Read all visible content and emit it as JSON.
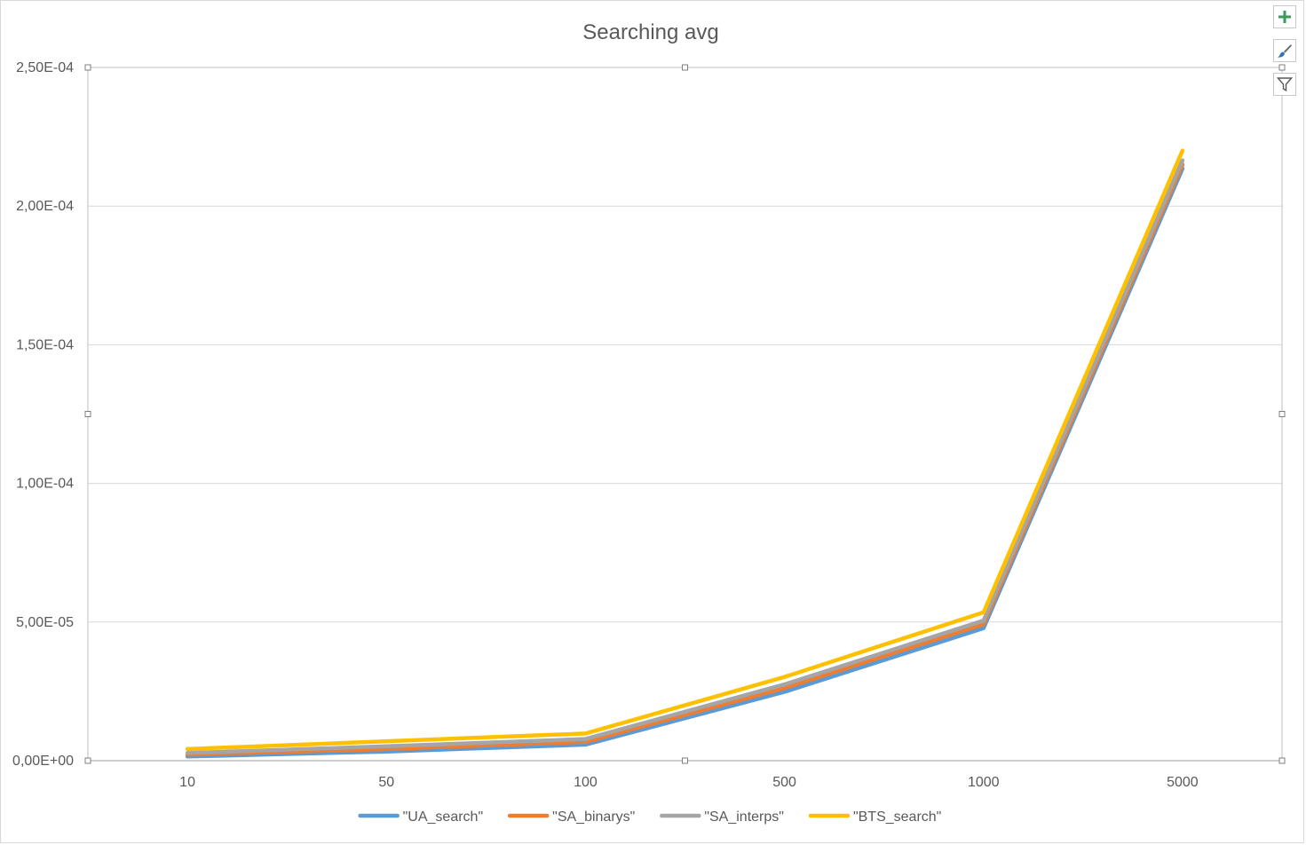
{
  "chart_data": {
    "type": "line",
    "title": "Searching avg",
    "xlabel": "",
    "ylabel": "",
    "categories": [
      "10",
      "50",
      "100",
      "500",
      "1000",
      "5000"
    ],
    "ylim": [
      0,
      0.00025
    ],
    "yticks": [
      {
        "value": 0,
        "label": "0,00E+00"
      },
      {
        "value": 5e-05,
        "label": "5,00E-05"
      },
      {
        "value": 0.0001,
        "label": "1,00E-04"
      },
      {
        "value": 0.00015,
        "label": "1,50E-04"
      },
      {
        "value": 0.0002,
        "label": "2,00E-04"
      },
      {
        "value": 0.00025,
        "label": "2,50E-04"
      }
    ],
    "grid": true,
    "legend_position": "bottom",
    "series": [
      {
        "name": "\"UA_search\"",
        "color": "#5B9BD5",
        "values": [
          1.5e-06,
          3.3e-06,
          5.8e-06,
          2.48e-05,
          4.78e-05,
          0.0002135
        ]
      },
      {
        "name": "\"SA_binarys\"",
        "color": "#ED7D31",
        "values": [
          2.2e-06,
          4.2e-06,
          6.8e-06,
          2.62e-05,
          4.92e-05,
          0.000215
        ]
      },
      {
        "name": "\"SA_interps\"",
        "color": "#A5A5A5",
        "values": [
          2.8e-06,
          5.2e-06,
          7.8e-06,
          2.75e-05,
          5.05e-05,
          0.0002165
        ]
      },
      {
        "name": "\"BTS_search\"",
        "color": "#FFC000",
        "values": [
          4.2e-06,
          7e-06,
          9.8e-06,
          3.02e-05,
          5.35e-05,
          0.00022
        ]
      }
    ]
  },
  "side_buttons": [
    {
      "name": "chart-elements-button",
      "icon": "plus-icon"
    },
    {
      "name": "chart-styles-button",
      "icon": "brush-icon"
    },
    {
      "name": "chart-filters-button",
      "icon": "filter-icon"
    }
  ]
}
